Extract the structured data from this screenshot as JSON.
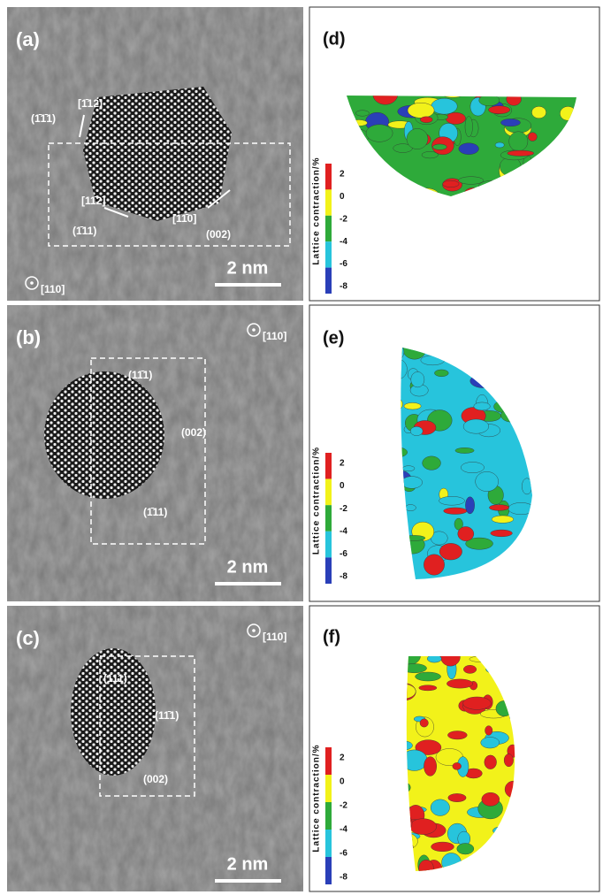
{
  "panels": [
    {
      "label": "(a)",
      "zone_axis": "[110]",
      "scale_bar": "2 nm",
      "annotations": [
        "(1̄1̄1)",
        "[1̄12]",
        "[11̄2]",
        "(1̄11)",
        "[11̄0]",
        "(002)"
      ]
    },
    {
      "label": "(b)",
      "zone_axis": "[110]",
      "scale_bar": "2 nm",
      "annotations": [
        "(11̄1)",
        "(002)",
        "(1̄11)"
      ]
    },
    {
      "label": "(c)",
      "zone_axis": "[110]",
      "scale_bar": "2 nm",
      "annotations": [
        "(111)",
        "(11̄1)",
        "(002)"
      ]
    }
  ],
  "maps": [
    {
      "label": "(d)",
      "colorbar": {
        "title": "Lattice contraction/%",
        "ticks": [
          2,
          0,
          -2,
          -4,
          -6,
          -8
        ]
      }
    },
    {
      "label": "(e)",
      "colorbar": {
        "title": "Lattice contraction/%",
        "ticks": [
          2,
          0,
          -2,
          -4,
          -6,
          -8
        ]
      }
    },
    {
      "label": "(f)",
      "colorbar": {
        "title": "Lattice contraction/%",
        "ticks": [
          2,
          0,
          -2,
          -4,
          -6,
          -8
        ]
      }
    }
  ]
}
